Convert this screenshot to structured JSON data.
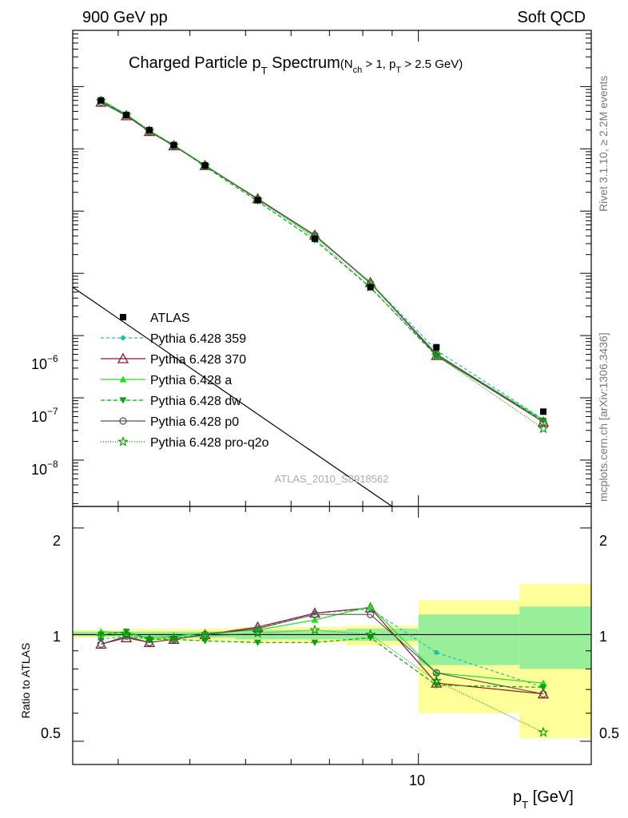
{
  "header": {
    "left": "900 GeV pp",
    "right": "Soft QCD"
  },
  "title": {
    "main": "Charged Particle p",
    "main_sub": "T",
    "main_tail": " Spectrum",
    "cut_open": "(N",
    "cut_sub1": "ch",
    "cut_mid": " > 1, p",
    "cut_sub2": "T",
    "cut_close": " > 2.5 GeV)"
  },
  "side_text": {
    "rivet": "Rivet 3.1.10, ≥ 2.2M events",
    "mcplots": "mcplots.cern.ch [arXiv:1306.3436]"
  },
  "analysis_label": "ATLAS_2010_S8918562",
  "axes": {
    "xlabel_main": "p",
    "xlabel_sub": "T",
    "xlabel_unit": "  [GeV]",
    "ratio_ylabel": "Ratio to ATLAS",
    "top_ticks": [
      {
        "base": "10",
        "exp": "−6"
      },
      {
        "base": "10",
        "exp": "−7"
      },
      {
        "base": "10",
        "exp": "−8"
      }
    ],
    "bottom_x_tick": "10",
    "ratio_ticks_left": [
      "2",
      "1",
      "0.5"
    ],
    "ratio_ticks_right": [
      "2",
      "1",
      "0.5"
    ]
  },
  "legend": [
    {
      "label": "ATLAS",
      "color": "#000000",
      "marker": "square",
      "dash": "none"
    },
    {
      "label": "Pythia 6.428 359",
      "color": "#1fbfa8",
      "marker": "dot",
      "dash": "4,3"
    },
    {
      "label": "Pythia 6.428 370",
      "color": "#8b1a2a",
      "marker": "triangle-open",
      "dash": "none"
    },
    {
      "label": "Pythia 6.428 a",
      "color": "#22dd22",
      "marker": "triangle",
      "dash": "none"
    },
    {
      "label": "Pythia 6.428 dw",
      "color": "#10a010",
      "marker": "triangle-down",
      "dash": "5,3"
    },
    {
      "label": "Pythia 6.428 p0",
      "color": "#555555",
      "marker": "circle-open",
      "dash": "none"
    },
    {
      "label": "Pythia 6.428 pro-q2o",
      "color": "#009900",
      "marker": "star-open",
      "dash": "1,2"
    }
  ],
  "chart_data": [
    {
      "type": "scatter",
      "title": "Charged Particle pT Spectrum (Nch > 1, pT > 2.5 GeV)",
      "xlabel": "pT [GeV]",
      "ylabel": "",
      "xscale": "log",
      "yscale": "log",
      "xlim": [
        2.5,
        20
      ],
      "ylim": [
        1.8e-09,
        0.08
      ],
      "x": [
        2.8,
        3.1,
        3.4,
        3.75,
        4.25,
        5.25,
        6.6,
        8.25,
        10.75,
        16.5
      ],
      "series": [
        {
          "name": "ATLAS",
          "values": [
            0.006,
            0.0035,
            0.002,
            0.00115,
            0.00054,
            0.00015,
            3.6e-05,
            6e-06,
            6.5e-07,
            6e-08
          ]
        },
        {
          "name": "Pythia 6.428 359",
          "values": [
            0.0058,
            0.00345,
            0.00195,
            0.00113,
            0.00054,
            0.000155,
            4.1e-05,
            7e-06,
            5.8e-07,
            4.5e-08
          ]
        },
        {
          "name": "Pythia 6.428 370",
          "values": [
            0.0056,
            0.0034,
            0.0019,
            0.00112,
            0.00054,
            0.000158,
            4.1e-05,
            7.1e-06,
            4.8e-07,
            4.1e-08
          ]
        },
        {
          "name": "Pythia 6.428 a",
          "values": [
            0.0061,
            0.00355,
            0.00196,
            0.00115,
            0.000545,
            0.000155,
            3.95e-05,
            7.2e-06,
            5e-07,
            4.4e-08
          ]
        },
        {
          "name": "Pythia 6.428 dw",
          "values": [
            0.006,
            0.00355,
            0.00195,
            0.00114,
            0.00052,
            0.000143,
            3.4e-05,
            5.9e-06,
            4.7e-07,
            4.3e-08
          ]
        },
        {
          "name": "Pythia 6.428 p0",
          "values": [
            0.0056,
            0.00345,
            0.0019,
            0.00112,
            0.00054,
            0.000156,
            4.1e-05,
            6.9e-06,
            5.1e-07,
            4.1e-08
          ]
        },
        {
          "name": "Pythia 6.428 pro-q2o",
          "values": [
            0.0059,
            0.0035,
            0.00195,
            0.00114,
            0.000535,
            0.000152,
            3.7e-05,
            6e-06,
            4.8e-07,
            3.2e-08
          ]
        }
      ],
      "reference_line": {
        "x": [
          2.5,
          9.0
        ],
        "y": [
          6e-06,
          1.8e-09
        ]
      },
      "grid": false,
      "legend_position": "left-middle"
    },
    {
      "type": "line",
      "title": "",
      "xlabel": "pT [GeV]",
      "ylabel": "Ratio to ATLAS",
      "xscale": "log",
      "yscale": "log",
      "xlim": [
        2.5,
        20
      ],
      "ylim": [
        0.43,
        2.3
      ],
      "x": [
        2.8,
        3.1,
        3.4,
        3.75,
        4.25,
        5.25,
        6.6,
        8.25,
        10.75,
        16.5
      ],
      "series": [
        {
          "name": "Pythia 6.428 359",
          "values": [
            0.97,
            0.99,
            0.97,
            0.98,
            1.0,
            1.04,
            1.15,
            1.18,
            0.89,
            0.71
          ]
        },
        {
          "name": "Pythia 6.428 370",
          "values": [
            0.94,
            0.98,
            0.95,
            0.97,
            1.0,
            1.05,
            1.15,
            1.19,
            0.73,
            0.68
          ]
        },
        {
          "name": "Pythia 6.428 a",
          "values": [
            1.02,
            1.01,
            0.98,
            0.99,
            1.01,
            1.03,
            1.1,
            1.2,
            0.78,
            0.73
          ]
        },
        {
          "name": "Pythia 6.428 dw",
          "values": [
            1.0,
            1.02,
            0.97,
            0.97,
            0.96,
            0.95,
            0.95,
            0.98,
            0.72,
            0.71
          ]
        },
        {
          "name": "Pythia 6.428 p0",
          "values": [
            0.94,
            0.99,
            0.95,
            0.97,
            1.0,
            1.04,
            1.14,
            1.14,
            0.78,
            0.68
          ]
        },
        {
          "name": "Pythia 6.428 pro-q2o",
          "values": [
            0.99,
            1.0,
            0.97,
            0.98,
            0.99,
            1.01,
            1.03,
            1.0,
            0.74,
            0.53
          ]
        }
      ],
      "bands": [
        {
          "x": [
            2.5,
            3.2
          ],
          "inner": [
            0.99,
            1.02
          ],
          "outer": [
            0.98,
            1.03
          ]
        },
        {
          "x": [
            3.2,
            4.8
          ],
          "inner": [
            0.98,
            1.02
          ],
          "outer": [
            0.96,
            1.04
          ]
        },
        {
          "x": [
            4.8,
            7.5
          ],
          "inner": [
            0.97,
            1.03
          ],
          "outer": [
            0.95,
            1.05
          ]
        },
        {
          "x": [
            7.5,
            10.0
          ],
          "inner": [
            0.96,
            1.04
          ],
          "outer": [
            0.93,
            1.06
          ]
        },
        {
          "x": [
            10.0,
            15.0
          ],
          "inner": [
            0.82,
            1.14
          ],
          "outer": [
            0.6,
            1.25
          ]
        },
        {
          "x": [
            15.0,
            20.0
          ],
          "inner": [
            0.8,
            1.2
          ],
          "outer": [
            0.51,
            1.39
          ]
        }
      ],
      "grid": false
    }
  ]
}
